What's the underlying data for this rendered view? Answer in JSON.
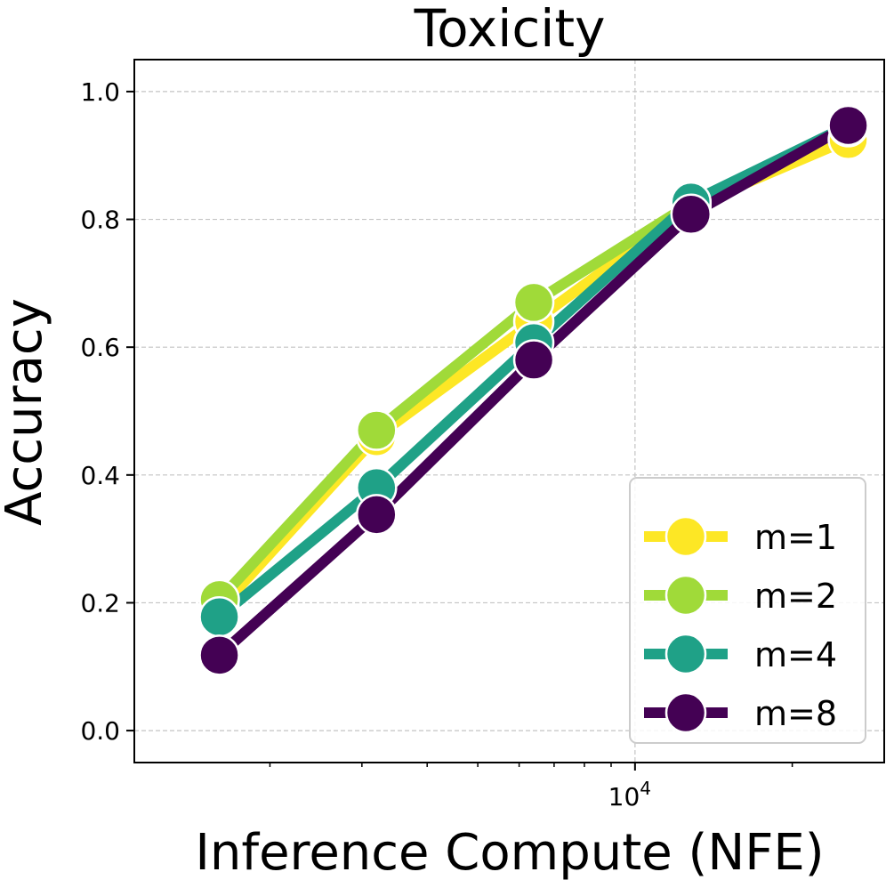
{
  "chart_data": {
    "type": "line",
    "title": "Toxicity",
    "xlabel": "Inference Compute (NFE)",
    "ylabel": "Accuracy",
    "xscale": "log",
    "xlim": [
      1100,
      30000
    ],
    "ylim": [
      -0.05,
      1.05
    ],
    "grid": true,
    "legend_position": "lower-right",
    "x": [
      1600,
      3200,
      6400,
      12800,
      25600
    ],
    "x_major_ticks": [
      {
        "value": 10000,
        "base": "10",
        "exponent": "4"
      }
    ],
    "x_minor_ticks": [
      2000,
      3000,
      4000,
      5000,
      6000,
      7000,
      8000,
      9000,
      20000
    ],
    "y_ticks": [
      0.0,
      0.2,
      0.4,
      0.6,
      0.8,
      1.0
    ],
    "y_tick_labels": [
      "0.0",
      "0.2",
      "0.4",
      "0.6",
      "0.8",
      "1.0"
    ],
    "series": [
      {
        "name": "m=1",
        "color": "#fde725",
        "values": [
          0.19,
          0.46,
          0.64,
          0.82,
          0.925
        ]
      },
      {
        "name": "m=2",
        "color": "#a0da39",
        "values": [
          0.205,
          0.47,
          0.67,
          0.825,
          0.945
        ]
      },
      {
        "name": "m=4",
        "color": "#1fa187",
        "values": [
          0.178,
          0.38,
          0.607,
          0.827,
          0.947
        ]
      },
      {
        "name": "m=8",
        "color": "#440154",
        "values": [
          0.118,
          0.338,
          0.58,
          0.808,
          0.947
        ]
      }
    ]
  }
}
